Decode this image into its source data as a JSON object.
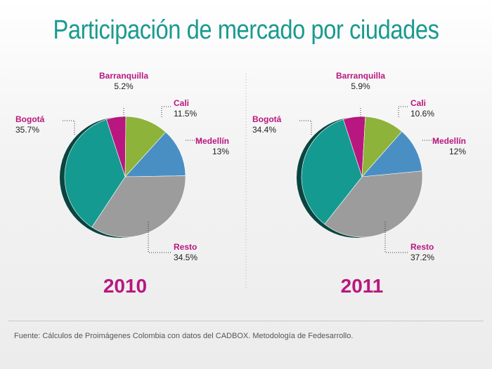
{
  "title": "Participación de mercado por ciudades",
  "source": "Fuente: Cálculos de Proimágenes Colombia con datos del CADBOX. Metodología de Fedesarrollo.",
  "colors": {
    "Barranquilla": "#b8177f",
    "Cali": "#8db33a",
    "Medellín": "#4a8fc4",
    "Resto": "#9c9c9c",
    "Bogotá": "#149a90",
    "title": "#1a9a8f",
    "year": "#b8177f",
    "label_name": "#b8177f"
  },
  "chart_data": [
    {
      "type": "pie",
      "title": "2010",
      "slices": [
        {
          "label": "Barranquilla",
          "value": 5.2,
          "value_text": "5.2%"
        },
        {
          "label": "Cali",
          "value": 11.5,
          "value_text": "11.5%"
        },
        {
          "label": "Medellín",
          "value": 13,
          "value_text": "13%"
        },
        {
          "label": "Resto",
          "value": 34.5,
          "value_text": "34.5%"
        },
        {
          "label": "Bogotá",
          "value": 35.7,
          "value_text": "35.7%"
        }
      ]
    },
    {
      "type": "pie",
      "title": "2011",
      "slices": [
        {
          "label": "Barranquilla",
          "value": 5.9,
          "value_text": "5.9%"
        },
        {
          "label": "Cali",
          "value": 10.6,
          "value_text": "10.6%"
        },
        {
          "label": "Medellín",
          "value": 12,
          "value_text": "12%"
        },
        {
          "label": "Resto",
          "value": 37.2,
          "value_text": "37.2%"
        },
        {
          "label": "Bogotá",
          "value": 34.4,
          "value_text": "34.4%"
        }
      ]
    }
  ]
}
